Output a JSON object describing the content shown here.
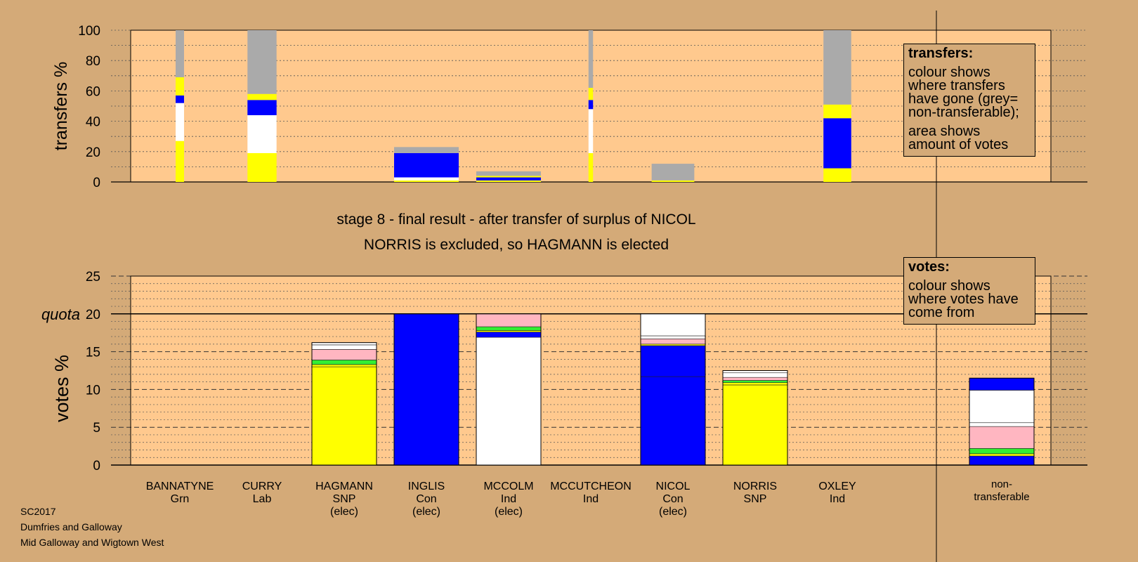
{
  "stage_title": "stage 8 - final result - after transfer of surplus of NICOL",
  "stage_subtitle": "NORRIS is excluded, so HAGMANN is elected",
  "transfers_legend": {
    "title": "transfers:",
    "line1": "colour shows where transfers have gone (grey= non-transferable);",
    "line2": "area shows amount of votes"
  },
  "votes_legend": {
    "title": "votes:",
    "line1": "colour shows where votes have come from"
  },
  "source": {
    "line1": "SC2017",
    "line2": "Dumfries and Galloway",
    "line3": "Mid Galloway and Wigtown West"
  },
  "colors": {
    "background": "#d4aa78",
    "plot_background": "#ffc98e",
    "SNP": "#ffff00",
    "Con": "#0000ff",
    "Ind_McColm": "#ffffff",
    "Ind_McCutcheon": "#ffb6c1",
    "Ind_Oxley": "#ffffff",
    "Lab": "#33ee33",
    "Grn": "#33ee33",
    "non_transferable": "#aaaaaa"
  },
  "candidates": [
    {
      "name": "BANNATYNE",
      "party": "Grn",
      "status": ""
    },
    {
      "name": "CURRY",
      "party": "Lab",
      "status": ""
    },
    {
      "name": "HAGMANN",
      "party": "SNP",
      "status": "(elec)"
    },
    {
      "name": "INGLIS",
      "party": "Con",
      "status": "(elec)"
    },
    {
      "name": "MCCOLM",
      "party": "Ind",
      "status": "(elec)"
    },
    {
      "name": "MCCUTCHEON",
      "party": "Ind",
      "status": ""
    },
    {
      "name": "NICOL",
      "party": "Con",
      "status": "(elec)"
    },
    {
      "name": "NORRIS",
      "party": "SNP",
      "status": ""
    },
    {
      "name": "OXLEY",
      "party": "Ind",
      "status": ""
    },
    {
      "name": "non-",
      "party": "transferable",
      "status": ""
    }
  ],
  "chart_data": [
    {
      "type": "bar",
      "title": "",
      "ylabel": "transfers %",
      "ylim": [
        0,
        100
      ],
      "yticks": [
        0,
        20,
        40,
        60,
        80,
        100
      ],
      "grid": "dotted",
      "legend": "top-right",
      "columns": [
        {
          "candidate": "BANNATYNE",
          "width_share": 0.13,
          "segments": [
            {
              "color": "#ffff00",
              "from": 0,
              "to": 27
            },
            {
              "color": "#ffffff",
              "from": 27,
              "to": 52
            },
            {
              "color": "#0000ff",
              "from": 52,
              "to": 57
            },
            {
              "color": "#ffff00",
              "from": 57,
              "to": 69
            },
            {
              "color": "#aaaaaa",
              "from": 69,
              "to": 100
            }
          ]
        },
        {
          "candidate": "CURRY",
          "width_share": 0.45,
          "segments": [
            {
              "color": "#ffff00",
              "from": 0,
              "to": 19
            },
            {
              "color": "#ffffff",
              "from": 19,
              "to": 44
            },
            {
              "color": "#0000ff",
              "from": 44,
              "to": 54
            },
            {
              "color": "#ffff00",
              "from": 54,
              "to": 58
            },
            {
              "color": "#aaaaaa",
              "from": 58,
              "to": 100
            }
          ]
        },
        {
          "candidate": "INGLIS",
          "width_share": 1.0,
          "segments": [
            {
              "color": "#ffff00",
              "from": 0,
              "to": 1
            },
            {
              "color": "#ffffff",
              "from": 1,
              "to": 3
            },
            {
              "color": "#0000ff",
              "from": 3,
              "to": 19
            },
            {
              "color": "#aaaaaa",
              "from": 19,
              "to": 23
            }
          ]
        },
        {
          "candidate": "MCCOLM",
          "width_share": 1.0,
          "segments": [
            {
              "color": "#ffff00",
              "from": 0,
              "to": 1
            },
            {
              "color": "#0000ff",
              "from": 1,
              "to": 3
            },
            {
              "color": "#ffff00",
              "from": 3,
              "to": 4
            },
            {
              "color": "#aaaaaa",
              "from": 4,
              "to": 7
            }
          ]
        },
        {
          "candidate": "MCCUTCHEON",
          "width_share": 0.07,
          "segments": [
            {
              "color": "#ffff00",
              "from": 0,
              "to": 19
            },
            {
              "color": "#ffffff",
              "from": 19,
              "to": 48
            },
            {
              "color": "#0000ff",
              "from": 48,
              "to": 54
            },
            {
              "color": "#ffff00",
              "from": 54,
              "to": 62
            },
            {
              "color": "#aaaaaa",
              "from": 62,
              "to": 100
            }
          ]
        },
        {
          "candidate": "NICOL",
          "width_share": 0.66,
          "segments": [
            {
              "color": "#ffff00",
              "from": 0,
              "to": 1
            },
            {
              "color": "#aaaaaa",
              "from": 1,
              "to": 12
            }
          ]
        },
        {
          "candidate": "OXLEY",
          "width_share": 0.43,
          "segments": [
            {
              "color": "#ffff00",
              "from": 0,
              "to": 9
            },
            {
              "color": "#0000ff",
              "from": 9,
              "to": 42
            },
            {
              "color": "#ffff00",
              "from": 42,
              "to": 51
            },
            {
              "color": "#aaaaaa",
              "from": 51,
              "to": 100
            }
          ]
        }
      ]
    },
    {
      "type": "bar",
      "title": "",
      "ylabel": "votes %",
      "ylim": [
        0,
        25
      ],
      "yticks": [
        0,
        5,
        10,
        15,
        20,
        25
      ],
      "quota": {
        "label": "quota",
        "value": 20
      },
      "grid": "dashed",
      "legend": "top-right",
      "bars": [
        {
          "candidate": "HAGMANN",
          "segments": [
            {
              "color": "#ffff00",
              "from": 0,
              "to": 13.0
            },
            {
              "color": "#ffff00",
              "from": 13.0,
              "to": 13.3
            },
            {
              "color": "#33ee33",
              "from": 13.3,
              "to": 13.9
            },
            {
              "color": "#ffb6c1",
              "from": 13.9,
              "to": 15.3
            },
            {
              "color": "#ffffff",
              "from": 15.3,
              "to": 15.9
            },
            {
              "color": "#ffffff",
              "from": 15.9,
              "to": 16.2
            }
          ]
        },
        {
          "candidate": "INGLIS",
          "segments": [
            {
              "color": "#0000ff",
              "from": 0,
              "to": 20.0
            }
          ]
        },
        {
          "candidate": "MCCOLM",
          "segments": [
            {
              "color": "#ffffff",
              "from": 0,
              "to": 16.9
            },
            {
              "color": "#0000ff",
              "from": 16.9,
              "to": 17.6
            },
            {
              "color": "#ffff00",
              "from": 17.6,
              "to": 17.8
            },
            {
              "color": "#33ee33",
              "from": 17.8,
              "to": 18.3
            },
            {
              "color": "#ffb6c1",
              "from": 18.3,
              "to": 20.0
            }
          ]
        },
        {
          "candidate": "NICOL",
          "segments": [
            {
              "color": "#0000ff",
              "from": 0,
              "to": 11.7
            },
            {
              "color": "#0000ff",
              "from": 11.7,
              "to": 15.8
            },
            {
              "color": "#ffff00",
              "from": 15.8,
              "to": 16.0
            },
            {
              "color": "#ffb6c1",
              "from": 16.0,
              "to": 16.7
            },
            {
              "color": "#ffffff",
              "from": 16.7,
              "to": 17.1
            },
            {
              "color": "#ffffff",
              "from": 17.1,
              "to": 20.0
            }
          ]
        },
        {
          "candidate": "NORRIS",
          "segments": [
            {
              "color": "#ffff00",
              "from": 0,
              "to": 10.6
            },
            {
              "color": "#ffff00",
              "from": 10.6,
              "to": 10.9
            },
            {
              "color": "#33ee33",
              "from": 10.9,
              "to": 11.2
            },
            {
              "color": "#ffb6c1",
              "from": 11.2,
              "to": 11.6
            },
            {
              "color": "#ffffff",
              "from": 11.6,
              "to": 12.2
            },
            {
              "color": "#ffffff",
              "from": 12.2,
              "to": 12.5
            }
          ]
        },
        {
          "candidate": "non-transferable",
          "segments": [
            {
              "color": "#0000ff",
              "from": 0,
              "to": 1.2
            },
            {
              "color": "#ffff00",
              "from": 1.2,
              "to": 1.5
            },
            {
              "color": "#33ee33",
              "from": 1.5,
              "to": 2.2
            },
            {
              "color": "#ffb6c1",
              "from": 2.2,
              "to": 5.1
            },
            {
              "color": "#ffffff",
              "from": 5.1,
              "to": 5.6
            },
            {
              "color": "#ffffff",
              "from": 5.6,
              "to": 9.9
            },
            {
              "color": "#0000ff",
              "from": 9.9,
              "to": 11.5
            }
          ]
        }
      ]
    }
  ]
}
